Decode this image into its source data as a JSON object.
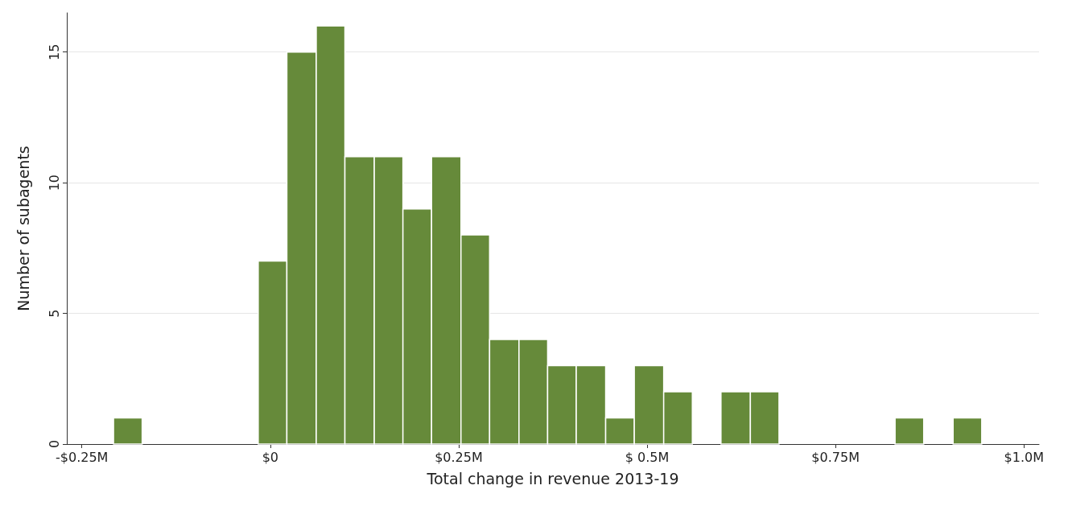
{
  "chart_data": {
    "type": "histogram",
    "xlabel": "Total change in revenue 2013-19",
    "ylabel": "Number of subagents",
    "color": "#668a3a",
    "bins": [
      -0.208,
      -0.17,
      -0.016,
      0.022,
      0.061,
      0.099,
      0.138,
      0.176,
      0.214,
      0.253,
      0.291,
      0.33,
      0.368,
      0.406,
      0.445,
      0.483,
      0.522,
      0.56,
      0.598,
      0.637,
      0.675,
      0.829,
      0.867,
      0.906,
      0.944
    ],
    "values": [
      1,
      0,
      7,
      15,
      16,
      11,
      11,
      9,
      11,
      8,
      4,
      4,
      3,
      3,
      1,
      3,
      2,
      0,
      2,
      2,
      0,
      1,
      0,
      1
    ],
    "xlim": [
      -0.27,
      1.02
    ],
    "xticks": [
      {
        "value": -0.25,
        "label": "-$0.25M"
      },
      {
        "value": 0,
        "label": "$0"
      },
      {
        "value": 0.25,
        "label": "$0.25M"
      },
      {
        "value": 0.5,
        "label": "$ 0.5M"
      },
      {
        "value": 0.75,
        "label": "$0.75M"
      },
      {
        "value": 1.0,
        "label": "$1.0M"
      }
    ],
    "ylim": [
      0,
      16.5
    ],
    "yticks": [
      0,
      5,
      10,
      15
    ],
    "grid": "y"
  }
}
